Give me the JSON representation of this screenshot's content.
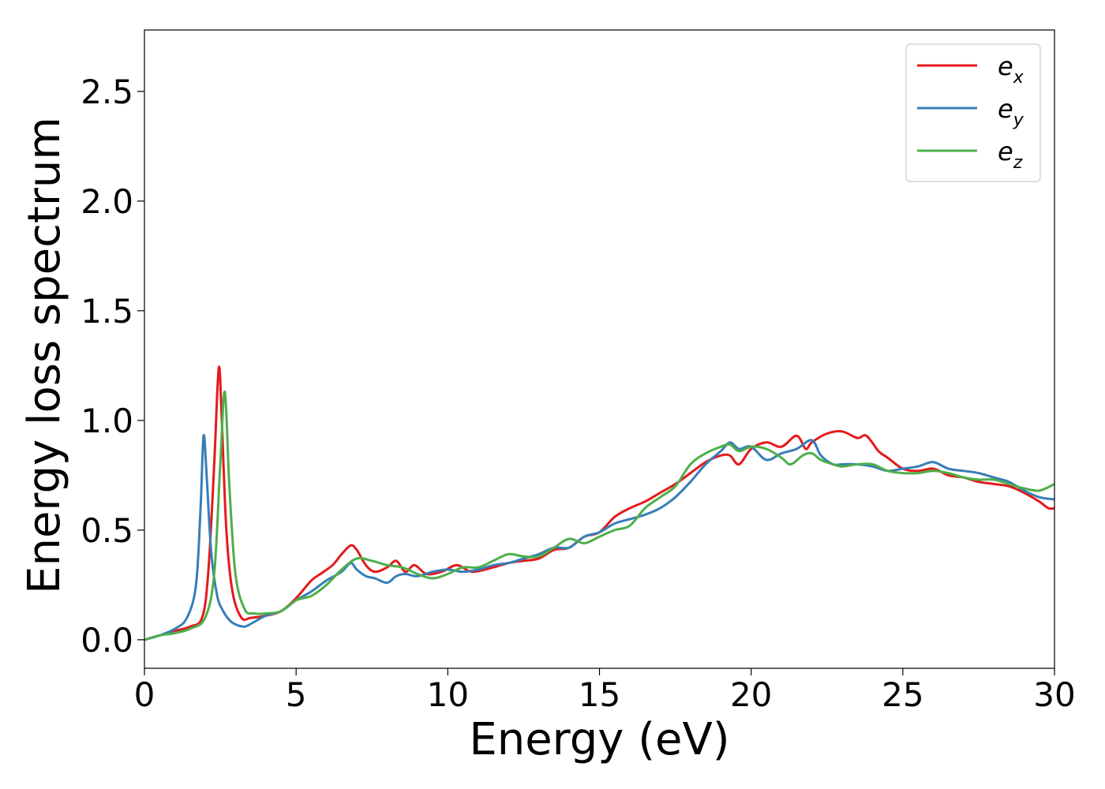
{
  "chart_data": {
    "type": "line",
    "xlabel": "Energy (eV)",
    "ylabel": "Energy loss spectrum",
    "xlim": [
      0,
      30
    ],
    "ylim": [
      -0.13,
      2.78
    ],
    "xticks": [
      0,
      5,
      10,
      15,
      20,
      25,
      30
    ],
    "xtick_labels": [
      "0",
      "5",
      "10",
      "15",
      "20",
      "25",
      "30"
    ],
    "yticks": [
      0.0,
      0.5,
      1.0,
      1.5,
      2.0,
      2.5
    ],
    "ytick_labels": [
      "0.0",
      "0.5",
      "1.0",
      "1.5",
      "2.0",
      "2.5"
    ],
    "grid": false,
    "legend_position": "top-right",
    "series": [
      {
        "name": "e",
        "subscript": "x",
        "color": "#e41a1c",
        "x": [
          0,
          0.5,
          1.0,
          1.5,
          1.9,
          2.1,
          2.3,
          2.45,
          2.55,
          2.7,
          2.9,
          3.2,
          3.5,
          4.0,
          4.5,
          5.0,
          5.5,
          5.8,
          6.2,
          6.5,
          6.8,
          7.0,
          7.3,
          7.6,
          8.0,
          8.3,
          8.6,
          8.9,
          9.3,
          9.8,
          10.3,
          10.8,
          11.5,
          12.0,
          12.5,
          13.0,
          13.5,
          14.0,
          14.5,
          15.0,
          15.5,
          16.0,
          16.5,
          17.0,
          17.5,
          18.0,
          18.5,
          19.0,
          19.3,
          19.6,
          20.0,
          20.5,
          21.0,
          21.5,
          21.8,
          22.0,
          22.5,
          23.0,
          23.5,
          23.8,
          24.2,
          24.5,
          25.0,
          25.5,
          26.0,
          26.5,
          27.0,
          27.5,
          28.0,
          28.5,
          29.0,
          29.5,
          29.8,
          30.0
        ],
        "y": [
          0.0,
          0.02,
          0.04,
          0.06,
          0.1,
          0.3,
          0.8,
          1.24,
          1.0,
          0.5,
          0.22,
          0.1,
          0.1,
          0.11,
          0.13,
          0.19,
          0.27,
          0.3,
          0.34,
          0.39,
          0.43,
          0.41,
          0.34,
          0.31,
          0.33,
          0.36,
          0.31,
          0.34,
          0.3,
          0.31,
          0.34,
          0.31,
          0.33,
          0.35,
          0.36,
          0.37,
          0.41,
          0.42,
          0.47,
          0.49,
          0.56,
          0.6,
          0.63,
          0.67,
          0.71,
          0.76,
          0.81,
          0.84,
          0.84,
          0.8,
          0.87,
          0.9,
          0.88,
          0.93,
          0.87,
          0.9,
          0.94,
          0.95,
          0.92,
          0.93,
          0.86,
          0.83,
          0.78,
          0.77,
          0.78,
          0.75,
          0.74,
          0.72,
          0.71,
          0.7,
          0.67,
          0.63,
          0.6,
          0.6
        ]
      },
      {
        "name": "e",
        "subscript": "y",
        "color": "#377eb8",
        "x": [
          0,
          0.5,
          1.0,
          1.4,
          1.7,
          1.85,
          1.95,
          2.05,
          2.2,
          2.4,
          2.6,
          2.8,
          3.0,
          3.3,
          3.6,
          4.0,
          4.5,
          5.0,
          5.5,
          6.0,
          6.5,
          6.8,
          7.0,
          7.3,
          7.6,
          8.0,
          8.3,
          8.6,
          9.0,
          9.5,
          10.0,
          10.5,
          11.0,
          11.5,
          12.0,
          12.5,
          13.0,
          13.5,
          14.0,
          14.5,
          15.0,
          15.5,
          16.0,
          16.5,
          17.0,
          17.5,
          18.0,
          18.5,
          19.0,
          19.3,
          19.6,
          20.0,
          20.5,
          21.0,
          21.5,
          22.0,
          22.3,
          22.7,
          23.0,
          23.5,
          24.0,
          24.5,
          25.0,
          25.5,
          26.0,
          26.5,
          27.0,
          27.5,
          28.0,
          28.5,
          29.0,
          29.5,
          30.0
        ],
        "y": [
          0.0,
          0.02,
          0.05,
          0.1,
          0.25,
          0.6,
          0.93,
          0.75,
          0.4,
          0.2,
          0.13,
          0.09,
          0.07,
          0.06,
          0.08,
          0.11,
          0.13,
          0.18,
          0.22,
          0.27,
          0.31,
          0.35,
          0.32,
          0.29,
          0.28,
          0.26,
          0.29,
          0.3,
          0.29,
          0.31,
          0.32,
          0.31,
          0.32,
          0.34,
          0.35,
          0.37,
          0.39,
          0.42,
          0.42,
          0.47,
          0.49,
          0.53,
          0.55,
          0.57,
          0.6,
          0.65,
          0.72,
          0.8,
          0.86,
          0.9,
          0.87,
          0.88,
          0.82,
          0.85,
          0.87,
          0.91,
          0.84,
          0.8,
          0.8,
          0.8,
          0.79,
          0.77,
          0.78,
          0.79,
          0.81,
          0.78,
          0.77,
          0.76,
          0.74,
          0.72,
          0.68,
          0.65,
          0.64
        ]
      },
      {
        "name": "e",
        "subscript": "z",
        "color": "#4daf4a",
        "x": [
          0,
          0.5,
          1.0,
          1.5,
          2.0,
          2.3,
          2.5,
          2.65,
          2.8,
          3.0,
          3.3,
          3.6,
          4.0,
          4.5,
          5.0,
          5.5,
          6.0,
          6.5,
          7.0,
          7.5,
          8.0,
          8.5,
          9.0,
          9.5,
          10.0,
          10.5,
          11.0,
          11.5,
          12.0,
          12.5,
          13.0,
          13.5,
          14.0,
          14.5,
          15.0,
          15.5,
          16.0,
          16.5,
          17.0,
          17.5,
          18.0,
          18.5,
          19.0,
          19.3,
          19.6,
          20.0,
          20.5,
          21.0,
          21.3,
          21.7,
          22.0,
          22.3,
          22.7,
          23.0,
          23.5,
          24.0,
          24.5,
          25.0,
          25.5,
          26.0,
          26.5,
          27.0,
          27.5,
          28.0,
          28.5,
          29.0,
          29.5,
          30.0
        ],
        "y": [
          0.0,
          0.02,
          0.03,
          0.05,
          0.1,
          0.3,
          0.8,
          1.13,
          0.7,
          0.3,
          0.14,
          0.12,
          0.12,
          0.13,
          0.18,
          0.2,
          0.25,
          0.32,
          0.37,
          0.36,
          0.34,
          0.33,
          0.3,
          0.28,
          0.3,
          0.33,
          0.33,
          0.36,
          0.39,
          0.38,
          0.38,
          0.42,
          0.46,
          0.44,
          0.47,
          0.5,
          0.52,
          0.6,
          0.65,
          0.7,
          0.8,
          0.85,
          0.88,
          0.89,
          0.86,
          0.88,
          0.87,
          0.83,
          0.8,
          0.84,
          0.85,
          0.82,
          0.8,
          0.79,
          0.8,
          0.8,
          0.77,
          0.76,
          0.76,
          0.77,
          0.76,
          0.74,
          0.73,
          0.73,
          0.71,
          0.69,
          0.68,
          0.71
        ]
      }
    ]
  }
}
